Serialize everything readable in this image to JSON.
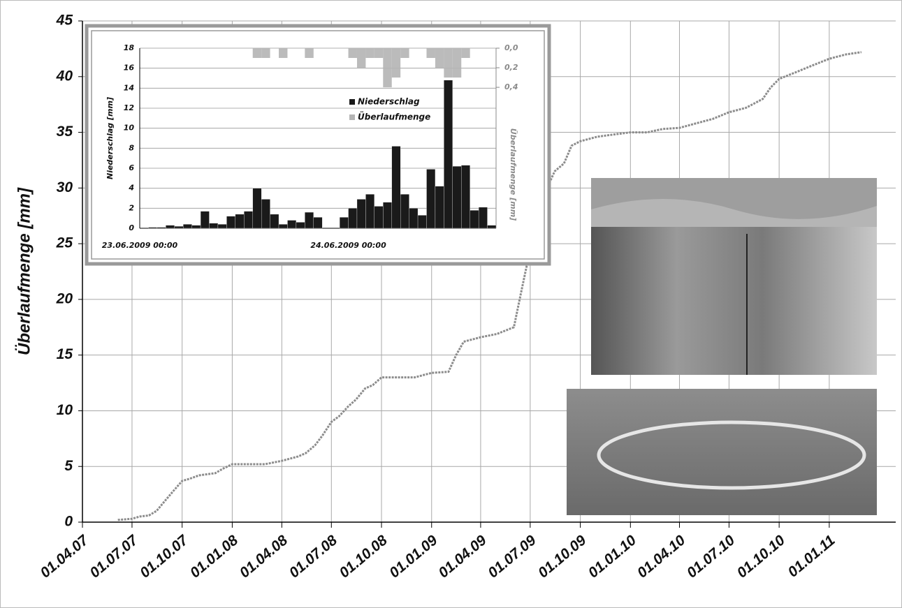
{
  "chart_data": [
    {
      "type": "line",
      "y_label": "Überlaufmenge [mm]",
      "x": [
        "05.06.07",
        "01.07.07",
        "15.07.07",
        "01.08.07",
        "15.08.07",
        "01.09.07",
        "15.09.07",
        "01.10.07",
        "15.10.07",
        "01.11.07",
        "01.12.07",
        "15.12.07",
        "01.01.08",
        "01.02.08",
        "01.03.08",
        "01.04.08",
        "01.05.08",
        "15.05.08",
        "01.06.08",
        "15.06.08",
        "01.07.08",
        "15.07.08",
        "01.08.08",
        "15.08.08",
        "01.09.08",
        "15.09.08",
        "01.10.08",
        "01.11.08",
        "01.12.08",
        "01.01.09",
        "01.02.09",
        "15.02.09",
        "01.03.09",
        "01.04.09",
        "01.05.09",
        "01.06.09",
        "15.06.09",
        "01.07.09",
        "15.07.09",
        "01.08.09",
        "15.08.09",
        "01.09.09",
        "15.09.09",
        "01.10.09",
        "01.11.09",
        "01.12.09",
        "01.01.10",
        "01.02.10",
        "01.03.10",
        "01.04.10",
        "01.05.10",
        "01.06.10",
        "01.07.10",
        "01.08.10",
        "01.09.10",
        "15.09.10",
        "01.10.10",
        "01.11.10",
        "01.12.10",
        "01.01.11",
        "01.02.11",
        "01.03.11"
      ],
      "values": [
        0.2,
        0.3,
        0.5,
        0.6,
        1.0,
        2.0,
        2.8,
        3.7,
        3.9,
        4.2,
        4.4,
        4.8,
        5.2,
        5.2,
        5.2,
        5.5,
        5.9,
        6.2,
        6.9,
        7.8,
        9.0,
        9.5,
        10.4,
        11.0,
        12.0,
        12.3,
        13.0,
        13.0,
        13.0,
        13.4,
        13.5,
        15.0,
        16.2,
        16.6,
        16.9,
        17.5,
        20.8,
        24.5,
        27.5,
        30.0,
        31.5,
        32.2,
        33.8,
        34.2,
        34.6,
        34.8,
        35.0,
        35.0,
        35.3,
        35.4,
        35.8,
        36.2,
        36.8,
        37.2,
        38.0,
        39.0,
        39.8,
        40.4,
        41.0,
        41.6,
        42.0,
        42.2
      ],
      "color": "#8c8c8c",
      "xlim": [
        "01.04.07",
        "03.05.11"
      ],
      "xticks": [
        "01.04.07",
        "01.07.07",
        "01.10.07",
        "01.01.08",
        "01.04.08",
        "01.07.08",
        "01.10.08",
        "01.01.09",
        "01.04.09",
        "01.07.09",
        "01.10.09",
        "01.01.10",
        "01.04.10",
        "01.07.10",
        "01.10.10",
        "01.01.11"
      ],
      "ylim": [
        0,
        45
      ],
      "yticks": [
        0,
        5,
        10,
        15,
        20,
        25,
        30,
        35,
        40,
        45
      ],
      "grid": true
    },
    {
      "type": "bar",
      "y_label": "Niederschlag [mm]",
      "y2_label": "Überlaufmenge [mm]",
      "categories": [
        "23.06.2009 00:00",
        null,
        null,
        null,
        null,
        null,
        null,
        null,
        null,
        null,
        null,
        null,
        null,
        null,
        null,
        null,
        null,
        null,
        null,
        null,
        null,
        null,
        null,
        null,
        "24.06.2009 00:00",
        null,
        null,
        null,
        null,
        null,
        null,
        null,
        null,
        null,
        null,
        null,
        null,
        null,
        null,
        null,
        null
      ],
      "series": [
        {
          "name": "Niederschlag",
          "color": "#1a1a1a",
          "values": [
            0,
            0.1,
            0.1,
            0.3,
            0.2,
            0.4,
            0.3,
            1.7,
            0.5,
            0.4,
            1.2,
            1.4,
            1.7,
            4.0,
            2.9,
            1.4,
            0.4,
            0.8,
            0.6,
            1.6,
            1.1,
            0,
            0,
            1.1,
            2.0,
            2.9,
            3.4,
            2.2,
            2.6,
            8.2,
            3.4,
            2.0,
            1.3,
            5.9,
            4.2,
            14.8,
            6.2,
            6.3,
            1.8,
            2.1,
            0.3
          ]
        },
        {
          "name": "Überlaufmenge",
          "color": "#b4b4b4",
          "axis": "y2",
          "values": [
            0,
            0,
            0,
            0,
            0,
            0,
            0,
            0,
            0,
            0,
            0,
            0,
            0,
            0.1,
            0.1,
            0,
            0.1,
            0,
            0,
            0.1,
            0,
            0,
            0,
            0,
            0.1,
            0.2,
            0.1,
            0.1,
            0.4,
            0.3,
            0.1,
            0,
            0,
            0.1,
            0.2,
            0.3,
            0.3,
            0.1,
            0,
            0,
            0
          ]
        }
      ],
      "ylim": [
        0,
        18
      ],
      "yticks": [
        0,
        2,
        4,
        6,
        8,
        10,
        12,
        14,
        16,
        18
      ],
      "y2lim": [
        1.84,
        0
      ],
      "y2ticks": [
        {
          "value": 0,
          "label": "0,0"
        },
        {
          "value": 0.2,
          "label": "0,2"
        },
        {
          "value": 0.4,
          "label": "0,4"
        }
      ],
      "grid": true,
      "legend": "center-right"
    }
  ]
}
